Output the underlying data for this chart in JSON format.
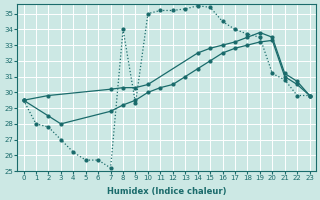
{
  "xlabel": "Humidex (Indice chaleur)",
  "bg_color": "#cce8e4",
  "line_color": "#1a6b6b",
  "grid_color": "#ffffff",
  "xlim": [
    -0.5,
    23.5
  ],
  "ylim": [
    25,
    35.6
  ],
  "yticks": [
    25,
    26,
    27,
    28,
    29,
    30,
    31,
    32,
    33,
    34,
    35
  ],
  "xticks": [
    0,
    1,
    2,
    3,
    4,
    5,
    6,
    7,
    8,
    9,
    10,
    11,
    12,
    13,
    14,
    15,
    16,
    17,
    18,
    19,
    20,
    21,
    22,
    23
  ],
  "series1": [
    [
      0,
      29.5
    ],
    [
      1,
      28.0
    ],
    [
      2,
      27.8
    ],
    [
      3,
      27.0
    ],
    [
      4,
      26.2
    ],
    [
      5,
      25.7
    ],
    [
      6,
      25.7
    ],
    [
      7,
      25.2
    ],
    [
      8,
      34.0
    ],
    [
      9,
      29.3
    ],
    [
      10,
      35.0
    ],
    [
      11,
      35.2
    ],
    [
      12,
      35.2
    ],
    [
      13,
      35.3
    ],
    [
      14,
      35.5
    ],
    [
      15,
      35.4
    ],
    [
      16,
      34.5
    ],
    [
      17,
      34.0
    ],
    [
      18,
      33.7
    ],
    [
      19,
      33.5
    ],
    [
      20,
      31.2
    ],
    [
      21,
      30.8
    ],
    [
      22,
      29.8
    ],
    [
      23,
      29.8
    ]
  ],
  "series2": [
    [
      0,
      29.5
    ],
    [
      2,
      29.8
    ],
    [
      7,
      30.2
    ],
    [
      8,
      30.3
    ],
    [
      9,
      30.3
    ],
    [
      10,
      30.5
    ],
    [
      14,
      32.5
    ],
    [
      15,
      32.8
    ],
    [
      16,
      33.0
    ],
    [
      17,
      33.2
    ],
    [
      18,
      33.5
    ],
    [
      19,
      33.8
    ],
    [
      20,
      33.5
    ],
    [
      21,
      31.2
    ],
    [
      22,
      30.7
    ],
    [
      23,
      29.8
    ]
  ],
  "series3": [
    [
      0,
      29.5
    ],
    [
      2,
      28.5
    ],
    [
      3,
      28.0
    ],
    [
      7,
      28.8
    ],
    [
      8,
      29.2
    ],
    [
      9,
      29.5
    ],
    [
      10,
      30.0
    ],
    [
      11,
      30.3
    ],
    [
      12,
      30.5
    ],
    [
      13,
      31.0
    ],
    [
      14,
      31.5
    ],
    [
      15,
      32.0
    ],
    [
      16,
      32.5
    ],
    [
      17,
      32.8
    ],
    [
      18,
      33.0
    ],
    [
      19,
      33.2
    ],
    [
      20,
      33.3
    ],
    [
      21,
      31.0
    ],
    [
      22,
      30.5
    ],
    [
      23,
      29.8
    ]
  ]
}
